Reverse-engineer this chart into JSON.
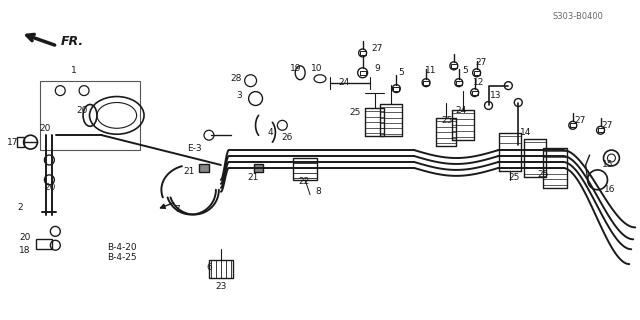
{
  "bg_color": "#ffffff",
  "line_color": "#1a1a1a",
  "fig_width": 6.4,
  "fig_height": 3.2,
  "dpi": 100,
  "diagram_code": "S303-B0400",
  "fr_label": "FR."
}
